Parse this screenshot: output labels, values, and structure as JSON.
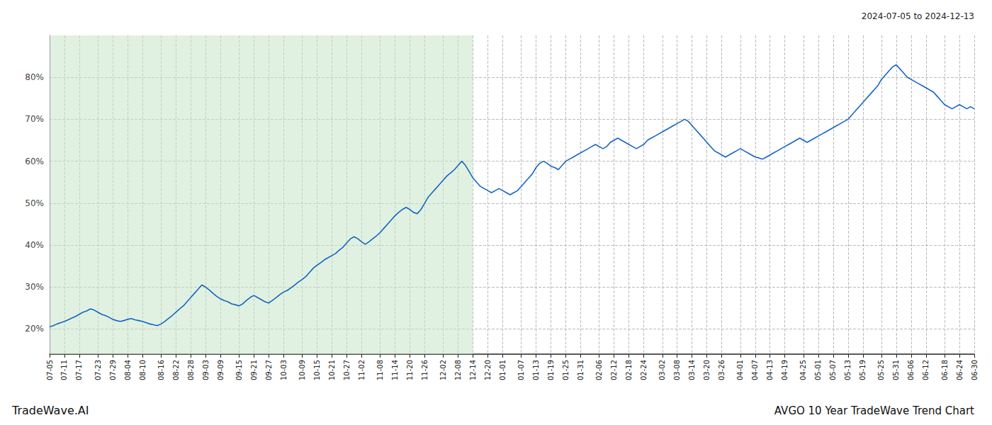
{
  "chart_data": {
    "type": "line",
    "title": "AVGO 10 Year TradeWave Trend Chart",
    "subtitle": "2024-07-05 to 2024-12-13",
    "annotations": [
      "TradeWave.AI"
    ],
    "color": "#1565c0",
    "grid": true,
    "ylim": [
      14,
      90
    ],
    "yticks": [
      {
        "value": 20,
        "label": "20%"
      },
      {
        "value": 30,
        "label": "30%"
      },
      {
        "value": 40,
        "label": "40%"
      },
      {
        "value": 50,
        "label": "50%"
      },
      {
        "value": 60,
        "label": "60%"
      },
      {
        "value": 70,
        "label": "70%"
      },
      {
        "value": 80,
        "label": "80%"
      }
    ],
    "shaded_region": {
      "from": "07-05",
      "to": "12-14",
      "color": "#c8e6c9"
    },
    "categories": [
      "07-05",
      null,
      null,
      null,
      "07-11",
      null,
      null,
      null,
      "07-17",
      null,
      null,
      null,
      null,
      "07-23",
      null,
      null,
      null,
      "07-29",
      null,
      null,
      null,
      "08-04",
      null,
      null,
      null,
      "08-10",
      null,
      null,
      null,
      null,
      "08-16",
      null,
      null,
      null,
      "08-22",
      null,
      null,
      null,
      "08-28",
      null,
      null,
      null,
      "09-03",
      null,
      null,
      null,
      "09-09",
      null,
      null,
      null,
      null,
      "09-15",
      null,
      null,
      null,
      "09-21",
      null,
      null,
      null,
      "09-27",
      null,
      null,
      null,
      "10-03",
      null,
      null,
      null,
      null,
      "10-09",
      null,
      null,
      null,
      "10-15",
      null,
      null,
      null,
      "10-21",
      null,
      null,
      null,
      "10-27",
      null,
      null,
      null,
      "11-02",
      null,
      null,
      null,
      null,
      "11-08",
      null,
      null,
      null,
      "11-14",
      null,
      null,
      null,
      "11-20",
      null,
      null,
      null,
      "11-26",
      null,
      null,
      null,
      null,
      "12-02",
      null,
      null,
      null,
      "12-08",
      null,
      null,
      null,
      "12-14",
      null,
      null,
      null,
      "12-20",
      null,
      null,
      null,
      "01-01",
      null,
      null,
      null,
      null,
      "01-07",
      null,
      null,
      null,
      "01-13",
      null,
      null,
      null,
      "01-19",
      null,
      null,
      null,
      "01-25",
      null,
      null,
      null,
      "01-31",
      null,
      null,
      null,
      null,
      "02-06",
      null,
      null,
      null,
      "02-12",
      null,
      null,
      null,
      "02-18",
      null,
      null,
      null,
      "02-24",
      null,
      null,
      null,
      null,
      "03-02",
      null,
      null,
      null,
      "03-08",
      null,
      null,
      null,
      "03-14",
      null,
      null,
      null,
      "03-20",
      null,
      null,
      null,
      "03-26",
      null,
      null,
      null,
      null,
      "04-01",
      null,
      null,
      null,
      "04-07",
      null,
      null,
      null,
      "04-13",
      null,
      null,
      null,
      "04-19",
      null,
      null,
      null,
      null,
      "04-25",
      null,
      null,
      null,
      "05-01",
      null,
      null,
      null,
      "05-07",
      null,
      null,
      null,
      "05-13",
      null,
      null,
      null,
      "05-19",
      null,
      null,
      null,
      null,
      "05-25",
      null,
      null,
      null,
      "05-31",
      null,
      null,
      null,
      "06-06",
      null,
      null,
      null,
      "06-12",
      null,
      null,
      null,
      null,
      "06-18",
      null,
      null,
      null,
      "06-24",
      null,
      null,
      null,
      "06-30"
    ],
    "values": [
      20.5,
      20.8,
      21.2,
      21.5,
      21.8,
      22.2,
      22.6,
      23.0,
      23.5,
      24.0,
      24.3,
      24.8,
      24.5,
      24.0,
      23.5,
      23.2,
      22.8,
      22.3,
      22.0,
      21.8,
      22.0,
      22.3,
      22.5,
      22.2,
      22.0,
      21.8,
      21.5,
      21.2,
      21.0,
      20.8,
      21.2,
      21.8,
      22.5,
      23.2,
      24.0,
      24.8,
      25.5,
      26.5,
      27.5,
      28.5,
      29.5,
      30.5,
      30.0,
      29.3,
      28.5,
      27.8,
      27.2,
      26.8,
      26.5,
      26.0,
      25.8,
      25.5,
      26.0,
      26.8,
      27.5,
      28.0,
      27.5,
      27.0,
      26.5,
      26.2,
      26.8,
      27.5,
      28.2,
      28.8,
      29.2,
      29.8,
      30.5,
      31.2,
      31.8,
      32.5,
      33.5,
      34.5,
      35.2,
      35.8,
      36.5,
      37.0,
      37.5,
      38.0,
      38.8,
      39.5,
      40.5,
      41.5,
      42.0,
      41.5,
      40.8,
      40.2,
      40.8,
      41.5,
      42.2,
      43.0,
      44.0,
      45.0,
      46.0,
      47.0,
      47.8,
      48.5,
      49.0,
      48.5,
      47.8,
      47.5,
      48.5,
      50.0,
      51.5,
      52.5,
      53.5,
      54.5,
      55.5,
      56.5,
      57.2,
      58.0,
      59.0,
      60.0,
      59.0,
      57.5,
      56.0,
      55.0,
      54.0,
      53.5,
      53.0,
      52.5,
      53.0,
      53.5,
      53.0,
      52.5,
      52.0,
      52.5,
      53.0,
      54.0,
      55.0,
      56.0,
      57.0,
      58.5,
      59.5,
      60.0,
      59.5,
      58.8,
      58.5,
      58.0,
      59.0,
      60.0,
      60.5,
      61.0,
      61.5,
      62.0,
      62.5,
      63.0,
      63.5,
      64.0,
      63.5,
      63.0,
      63.5,
      64.5,
      65.0,
      65.5,
      65.0,
      64.5,
      64.0,
      63.5,
      63.0,
      63.5,
      64.0,
      65.0,
      65.5,
      66.0,
      66.5,
      67.0,
      67.5,
      68.0,
      68.5,
      69.0,
      69.5,
      70.0,
      69.5,
      68.5,
      67.5,
      66.5,
      65.5,
      64.5,
      63.5,
      62.5,
      62.0,
      61.5,
      61.0,
      61.5,
      62.0,
      62.5,
      63.0,
      62.5,
      62.0,
      61.5,
      61.0,
      60.8,
      60.5,
      61.0,
      61.5,
      62.0,
      62.5,
      63.0,
      63.5,
      64.0,
      64.5,
      65.0,
      65.5,
      65.0,
      64.5,
      65.0,
      65.5,
      66.0,
      66.5,
      67.0,
      67.5,
      68.0,
      68.5,
      69.0,
      69.5,
      70.0,
      71.0,
      72.0,
      73.0,
      74.0,
      75.0,
      76.0,
      77.0,
      78.0,
      79.5,
      80.5,
      81.5,
      82.5,
      83.0,
      82.0,
      81.0,
      80.0,
      79.5,
      79.0,
      78.5,
      78.0,
      77.5,
      77.0,
      76.5,
      75.5,
      74.5,
      73.5,
      73.0,
      72.5,
      73.0,
      73.5,
      73.0,
      72.5,
      73.0,
      72.5
    ]
  }
}
